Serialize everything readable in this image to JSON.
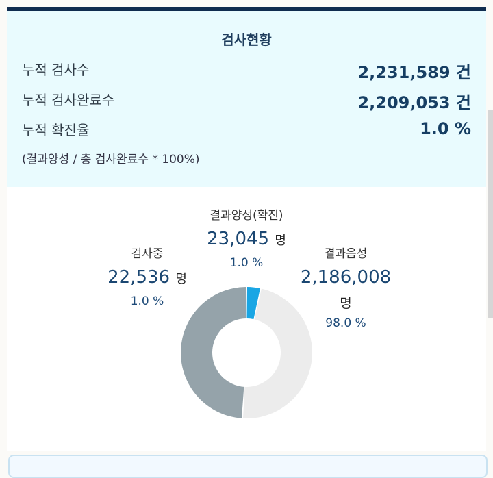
{
  "summary": {
    "title": "검사현황",
    "rows": [
      {
        "label": "누적 검사수",
        "value": "2,231,589 건"
      },
      {
        "label": "누적 검사완료수",
        "value": "2,209,053 건"
      },
      {
        "label": "누적 확진율",
        "value": "1.0 %"
      }
    ],
    "formula": "(결과양성 / 총 검사완료수 * 100%)"
  },
  "chart_data": {
    "type": "pie",
    "donut": true,
    "slices": [
      {
        "name": "결과양성(확진)",
        "value": 23045,
        "count_label": "23,045",
        "unit": "명",
        "percent": "1.0 %",
        "color": "#1aa6e4"
      },
      {
        "name": "결과음성",
        "value": 2186008,
        "count_label": "2,186,008",
        "unit": "명",
        "percent": "98.0 %",
        "color": "#ececec"
      },
      {
        "name": "검사중",
        "value": 22536,
        "count_label": "22,536",
        "unit": "명",
        "percent": "1.0 %",
        "color": "#95a3aa"
      }
    ]
  }
}
